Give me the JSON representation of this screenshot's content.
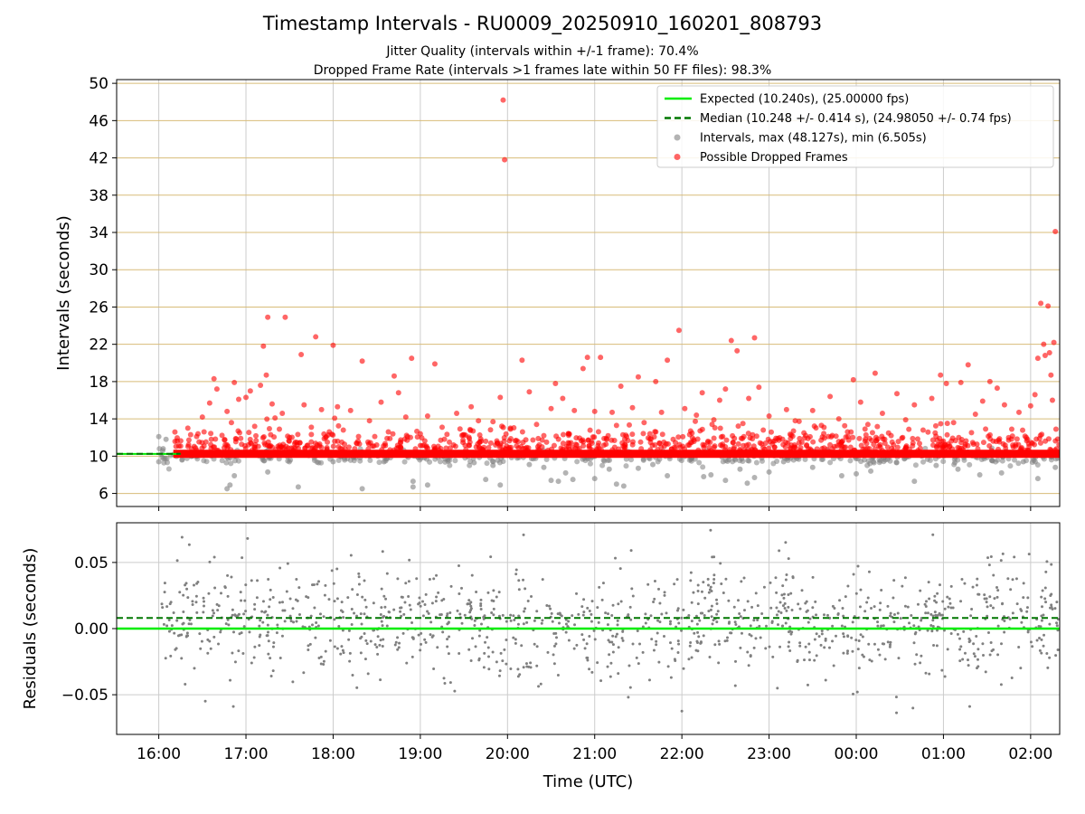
{
  "figure": {
    "title": "Timestamp Intervals - RU0009_20250910_160201_808793",
    "subtitle_1": "Jitter Quality (intervals within +/-1 frame): 70.4%",
    "subtitle_2": "Dropped Frame Rate (intervals >1 frames late within 50 FF files): 98.3%"
  },
  "chart_data": [
    {
      "type": "scatter",
      "ylabel": "Intervals (seconds)",
      "xlabel": "",
      "ylim": [
        4.6,
        50.4
      ],
      "yticks": [
        6,
        10,
        14,
        18,
        22,
        26,
        30,
        34,
        38,
        42,
        46,
        50
      ],
      "grid": true,
      "legend_position": "top-right",
      "legend": [
        {
          "label": "Expected (10.240s), (25.00000 fps)",
          "kind": "line",
          "color": "#00ee00"
        },
        {
          "label": "Median (10.248 +/- 0.414 s), (24.98050 +/- 0.74 fps)",
          "kind": "dashed",
          "color": "#007700"
        },
        {
          "label": "Intervals, max (48.127s), min (6.505s)",
          "kind": "dot",
          "color": "#808080"
        },
        {
          "label": "Possible Dropped Frames",
          "kind": "dot",
          "color": "#ff0000"
        }
      ],
      "expected_interval": 10.24,
      "median_interval": 10.248,
      "max_interval": 48.127,
      "min_interval": 6.505,
      "baseline_band": {
        "x_start": "16:10",
        "x_end": "02:20",
        "y": 10.25,
        "color": "#ff0000"
      },
      "series": [
        {
          "name": "Possible Dropped Frames",
          "color": "#ff0000",
          "points": [
            [
              "16:20",
              13.0
            ],
            [
              "16:27",
              12.4
            ],
            [
              "16:30",
              14.2
            ],
            [
              "16:35",
              15.7
            ],
            [
              "16:38",
              18.3
            ],
            [
              "16:40",
              17.2
            ],
            [
              "16:45",
              10.9
            ],
            [
              "16:47",
              14.8
            ],
            [
              "16:50",
              13.6
            ],
            [
              "16:52",
              17.9
            ],
            [
              "16:55",
              16.1
            ],
            [
              "17:00",
              16.3
            ],
            [
              "17:03",
              17.0
            ],
            [
              "17:06",
              13.2
            ],
            [
              "17:10",
              17.6
            ],
            [
              "17:12",
              21.8
            ],
            [
              "17:14",
              18.7
            ],
            [
              "17:15",
              24.9
            ],
            [
              "17:18",
              15.6
            ],
            [
              "17:20",
              14.1
            ],
            [
              "17:23",
              12.9
            ],
            [
              "17:25",
              14.6
            ],
            [
              "17:27",
              24.9
            ],
            [
              "17:30",
              12.0
            ],
            [
              "17:34",
              11.5
            ],
            [
              "17:38",
              20.9
            ],
            [
              "17:40",
              15.5
            ],
            [
              "17:45",
              13.1
            ],
            [
              "17:48",
              22.8
            ],
            [
              "17:52",
              15.0
            ],
            [
              "17:56",
              11.5
            ],
            [
              "18:00",
              21.9
            ],
            [
              "18:03",
              15.3
            ],
            [
              "18:07",
              12.8
            ],
            [
              "18:12",
              14.9
            ],
            [
              "18:16",
              11.4
            ],
            [
              "18:20",
              20.2
            ],
            [
              "18:25",
              13.8
            ],
            [
              "18:30",
              11.2
            ],
            [
              "18:33",
              15.8
            ],
            [
              "18:38",
              12.6
            ],
            [
              "18:42",
              18.6
            ],
            [
              "18:45",
              16.8
            ],
            [
              "18:50",
              14.2
            ],
            [
              "18:54",
              20.5
            ],
            [
              "19:00",
              12.4
            ],
            [
              "19:05",
              14.3
            ],
            [
              "19:10",
              19.9
            ],
            [
              "19:15",
              13.1
            ],
            [
              "19:20",
              11.5
            ],
            [
              "19:25",
              14.6
            ],
            [
              "19:30",
              12.3
            ],
            [
              "19:35",
              15.3
            ],
            [
              "19:40",
              13.8
            ],
            [
              "19:45",
              11.6
            ],
            [
              "19:50",
              13.7
            ],
            [
              "19:55",
              16.3
            ],
            [
              "19:57",
              48.2
            ],
            [
              "19:58",
              41.8
            ],
            [
              "20:02",
              13.0
            ],
            [
              "20:06",
              11.7
            ],
            [
              "20:10",
              20.3
            ],
            [
              "20:15",
              16.9
            ],
            [
              "20:20",
              13.4
            ],
            [
              "20:25",
              12.2
            ],
            [
              "20:30",
              15.1
            ],
            [
              "20:33",
              17.8
            ],
            [
              "20:38",
              16.2
            ],
            [
              "20:42",
              12.4
            ],
            [
              "20:46",
              14.9
            ],
            [
              "20:52",
              19.4
            ],
            [
              "20:55",
              20.6
            ],
            [
              "21:00",
              14.8
            ],
            [
              "21:04",
              20.6
            ],
            [
              "21:08",
              11.9
            ],
            [
              "21:12",
              14.7
            ],
            [
              "21:15",
              13.3
            ],
            [
              "21:18",
              17.5
            ],
            [
              "21:22",
              12.1
            ],
            [
              "21:26",
              15.2
            ],
            [
              "21:30",
              18.5
            ],
            [
              "21:34",
              13.6
            ],
            [
              "21:38",
              12.4
            ],
            [
              "21:42",
              18.0
            ],
            [
              "21:46",
              14.7
            ],
            [
              "21:50",
              20.3
            ],
            [
              "21:54",
              11.8
            ],
            [
              "21:58",
              23.5
            ],
            [
              "22:02",
              15.1
            ],
            [
              "22:06",
              12.7
            ],
            [
              "22:10",
              14.4
            ],
            [
              "22:14",
              16.8
            ],
            [
              "22:18",
              11.6
            ],
            [
              "22:22",
              13.9
            ],
            [
              "22:26",
              16.0
            ],
            [
              "22:30",
              17.2
            ],
            [
              "22:34",
              22.4
            ],
            [
              "22:38",
              21.3
            ],
            [
              "22:42",
              13.5
            ],
            [
              "22:46",
              16.2
            ],
            [
              "22:50",
              22.7
            ],
            [
              "22:53",
              17.4
            ],
            [
              "22:56",
              12.8
            ],
            [
              "23:00",
              14.3
            ],
            [
              "23:06",
              11.9
            ],
            [
              "23:12",
              15.0
            ],
            [
              "23:18",
              13.8
            ],
            [
              "23:24",
              12.5
            ],
            [
              "23:30",
              14.9
            ],
            [
              "23:36",
              13.3
            ],
            [
              "23:42",
              16.4
            ],
            [
              "23:48",
              14.0
            ],
            [
              "23:54",
              12.6
            ],
            [
              "23:58",
              18.2
            ],
            [
              "00:03",
              15.8
            ],
            [
              "00:08",
              13.4
            ],
            [
              "00:13",
              18.9
            ],
            [
              "00:18",
              14.6
            ],
            [
              "00:24",
              12.2
            ],
            [
              "00:28",
              16.7
            ],
            [
              "00:34",
              13.9
            ],
            [
              "00:40",
              15.5
            ],
            [
              "00:46",
              12.8
            ],
            [
              "00:52",
              16.2
            ],
            [
              "00:58",
              18.7
            ],
            [
              "01:02",
              17.8
            ],
            [
              "01:07",
              13.6
            ],
            [
              "01:12",
              17.9
            ],
            [
              "01:17",
              19.8
            ],
            [
              "01:22",
              14.5
            ],
            [
              "01:27",
              15.9
            ],
            [
              "01:32",
              18.0
            ],
            [
              "01:37",
              17.3
            ],
            [
              "01:42",
              15.5
            ],
            [
              "01:47",
              12.9
            ],
            [
              "01:52",
              14.7
            ],
            [
              "01:57",
              12.0
            ],
            [
              "02:00",
              15.4
            ],
            [
              "02:03",
              16.6
            ],
            [
              "02:05",
              20.5
            ],
            [
              "02:07",
              26.4
            ],
            [
              "02:09",
              22.0
            ],
            [
              "02:10",
              20.8
            ],
            [
              "02:12",
              26.1
            ],
            [
              "02:13",
              21.1
            ],
            [
              "02:14",
              18.7
            ],
            [
              "02:15",
              16.0
            ],
            [
              "02:16",
              22.2
            ],
            [
              "02:17",
              34.1
            ]
          ]
        },
        {
          "name": "Intervals",
          "color": "#808080",
          "points": [
            [
              "16:00",
              9.4
            ],
            [
              "16:00",
              12.1
            ],
            [
              "16:03",
              10.8
            ],
            [
              "16:05",
              11.8
            ],
            [
              "16:47",
              6.5
            ],
            [
              "16:49",
              6.9
            ],
            [
              "16:52",
              7.9
            ],
            [
              "17:15",
              8.3
            ],
            [
              "17:36",
              6.7
            ],
            [
              "17:50",
              9.3
            ],
            [
              "18:00",
              9.4
            ],
            [
              "18:20",
              6.5
            ],
            [
              "18:35",
              9.4
            ],
            [
              "18:55",
              7.3
            ],
            [
              "18:55",
              6.7
            ],
            [
              "19:05",
              6.9
            ],
            [
              "19:37",
              9.3
            ],
            [
              "19:45",
              7.5
            ],
            [
              "19:50",
              9.0
            ],
            [
              "19:55",
              6.9
            ],
            [
              "20:15",
              9.1
            ],
            [
              "20:25",
              8.8
            ],
            [
              "20:30",
              7.4
            ],
            [
              "20:35",
              7.3
            ],
            [
              "20:40",
              8.2
            ],
            [
              "20:45",
              7.5
            ],
            [
              "21:00",
              7.6
            ],
            [
              "21:10",
              8.6
            ],
            [
              "21:15",
              7.0
            ],
            [
              "21:20",
              6.8
            ],
            [
              "21:30",
              8.7
            ],
            [
              "21:40",
              9.1
            ],
            [
              "21:50",
              7.9
            ],
            [
              "22:15",
              7.8
            ],
            [
              "22:20",
              8.0
            ],
            [
              "22:30",
              7.4
            ],
            [
              "22:40",
              8.6
            ],
            [
              "22:45",
              7.1
            ],
            [
              "22:50",
              7.7
            ],
            [
              "23:00",
              8.3
            ],
            [
              "23:10",
              9.4
            ],
            [
              "23:30",
              8.8
            ],
            [
              "23:50",
              7.9
            ],
            [
              "00:00",
              8.1
            ],
            [
              "00:10",
              8.4
            ],
            [
              "00:20",
              9.6
            ],
            [
              "00:40",
              7.3
            ],
            [
              "00:55",
              9.0
            ],
            [
              "01:10",
              8.6
            ],
            [
              "01:25",
              8.0
            ],
            [
              "01:40",
              8.2
            ],
            [
              "01:55",
              9.4
            ],
            [
              "02:05",
              7.6
            ],
            [
              "02:17",
              8.8
            ]
          ]
        }
      ]
    },
    {
      "type": "scatter",
      "ylabel": "Residuals (seconds)",
      "xlabel": "Time (UTC)",
      "ylim": [
        -0.08,
        0.08
      ],
      "yticks": [
        -0.05,
        0.0,
        0.05
      ],
      "ytick_labels": [
        "−0.05",
        "0.00",
        "0.05"
      ],
      "grid": true,
      "expected_residual": 0.0,
      "median_residual": 0.008,
      "series": [
        {
          "name": "Residuals",
          "color": "#808080",
          "count": 1200,
          "spread": 0.02,
          "center": 0.004
        }
      ]
    }
  ],
  "x_axis": {
    "xlim": [
      "15:31",
      "02:20"
    ],
    "ticks": [
      "16:00",
      "17:00",
      "18:00",
      "19:00",
      "20:00",
      "21:00",
      "22:00",
      "23:00",
      "00:00",
      "01:00",
      "02:00"
    ]
  },
  "colors": {
    "expected": "#00ee00",
    "median": "#007700",
    "interval": "#808080",
    "dropped": "#ff0000",
    "hgrid_top": "#d8bc78",
    "grid": "#cccccc"
  }
}
